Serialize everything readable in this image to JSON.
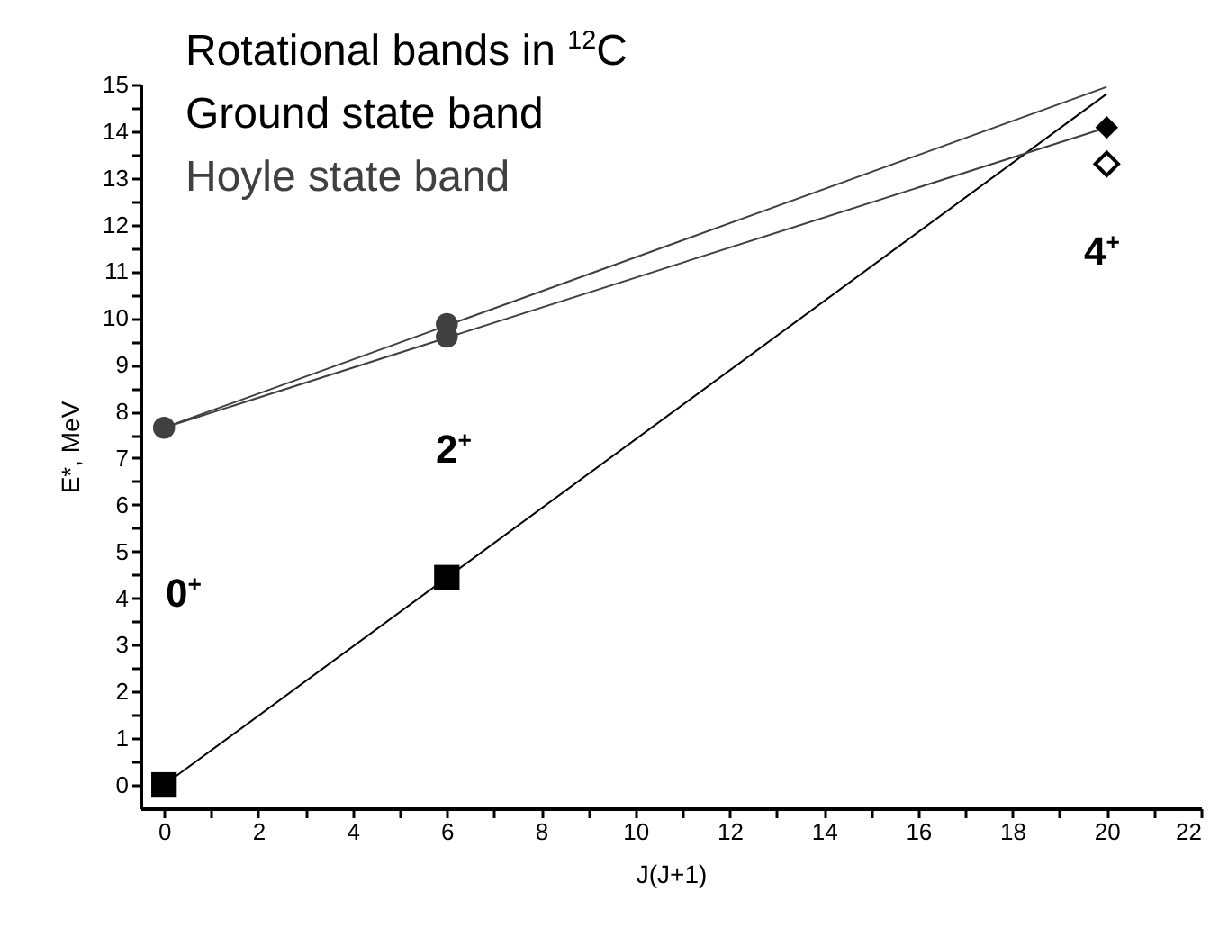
{
  "chart_data": {
    "type": "scatter",
    "title": "Rotational bands in $^{12}$C",
    "xlabel": "J(J+1)",
    "ylabel": "E*, MeV",
    "xlim": [
      -0.5,
      22
    ],
    "ylim": [
      -0.5,
      15
    ],
    "xticks": [
      0,
      {
        "value": 1,
        "label": null
      },
      2,
      {
        "value": 3,
        "label": null
      },
      4,
      {
        "value": 5,
        "label": null
      },
      6,
      {
        "value": 7,
        "label": null
      },
      8,
      {
        "value": 9,
        "label": null
      },
      10,
      {
        "value": 11,
        "label": null
      },
      12,
      {
        "value": 13,
        "label": null
      },
      14,
      {
        "value": 15,
        "label": null
      },
      16,
      {
        "value": 17,
        "label": null
      },
      18,
      {
        "value": 19,
        "label": null
      },
      20,
      {
        "value": 21,
        "label": null
      },
      22
    ],
    "yticks": [
      0,
      {
        "value": 0.5,
        "label": null
      },
      1,
      {
        "value": 1.5,
        "label": null
      },
      2,
      {
        "value": 2.5,
        "label": null
      },
      3,
      {
        "value": 3.5,
        "label": null
      },
      4,
      {
        "value": 4.5,
        "label": null
      },
      5,
      {
        "value": 5.5,
        "label": null
      },
      6,
      {
        "value": 6.5,
        "label": null
      },
      7,
      {
        "value": 7.5,
        "label": null
      },
      8,
      {
        "value": 8.5,
        "label": null
      },
      9,
      {
        "value": 9.5,
        "label": null
      },
      10,
      {
        "value": 10.5,
        "label": null
      },
      11,
      {
        "value": 11.5,
        "label": null
      },
      12,
      {
        "value": 12.5,
        "label": null
      },
      13,
      {
        "value": 13.5,
        "label": null
      },
      14,
      {
        "value": 14.5,
        "label": null
      },
      15
    ],
    "grid": false,
    "series": [
      {
        "type": "line",
        "color": "#000000",
        "x": [
          0,
          20
        ],
        "values": [
          0,
          14.8
        ]
      },
      {
        "type": "line",
        "color": "#404040",
        "x": [
          0,
          20
        ],
        "values": [
          7.65,
          14.95
        ]
      },
      {
        "type": "line",
        "color": "#404040",
        "x": [
          0,
          20
        ],
        "values": [
          7.65,
          14.08
        ]
      },
      {
        "name": "Ground state band",
        "color": "#000000",
        "x": [
          0,
          6
        ],
        "values": [
          0,
          4.44
        ],
        "marker": "square"
      },
      {
        "color": "#000000",
        "x": [
          20
        ],
        "values": [
          14.08
        ],
        "marker": "diamond"
      },
      {
        "name": "Hoyle state band",
        "color": "#404040",
        "x": [
          0,
          6,
          6
        ],
        "values": [
          7.65,
          9.6,
          9.87
        ],
        "marker": "circle"
      },
      {
        "color": "#ffffff",
        "x": [
          20
        ],
        "values": [
          13.3
        ],
        "marker": "diamond"
      }
    ],
    "annotations": [
      "0$^{+}$",
      "2$^{+}$",
      "4$^{+}$"
    ]
  }
}
